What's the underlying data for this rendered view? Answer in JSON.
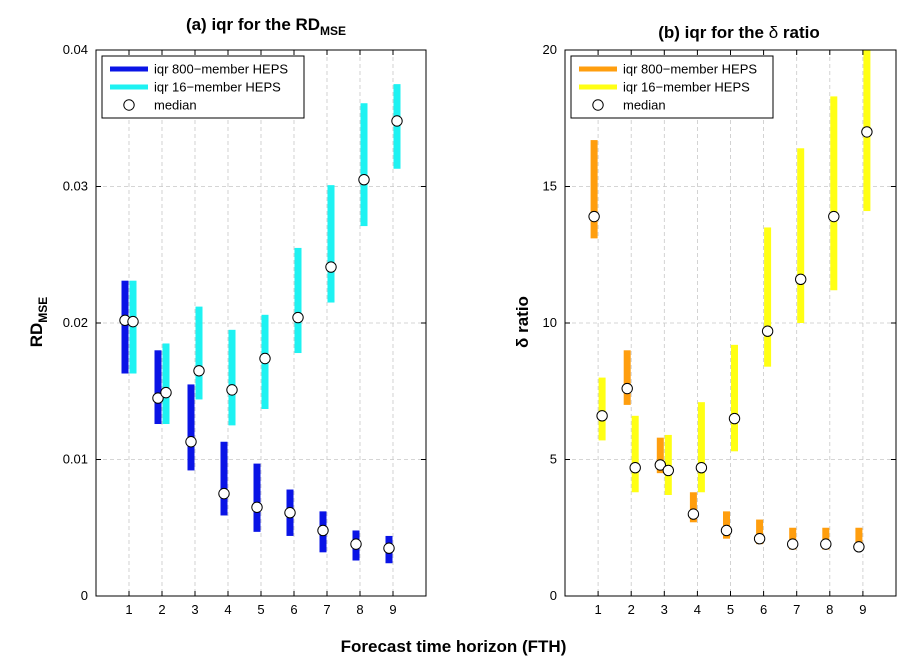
{
  "figure": {
    "xlabel": "Forecast time horizon (FTH)"
  },
  "chart_data": [
    {
      "type": "range-bar",
      "title_prefix": "(a) iqr for the RD",
      "title_sub": "MSE",
      "ylabel_main": "RD",
      "ylabel_sub": "MSE",
      "x": [
        1,
        2,
        3,
        4,
        5,
        6,
        7,
        8,
        9
      ],
      "xticks": [
        "1",
        "2",
        "3",
        "4",
        "5",
        "6",
        "7",
        "8",
        "9"
      ],
      "xlim": [
        0,
        10
      ],
      "ylim": [
        0,
        0.04
      ],
      "yticks": [
        "0",
        "0.01",
        "0.02",
        "0.03",
        "0.04"
      ],
      "ytick_values": [
        0,
        0.01,
        0.02,
        0.03,
        0.04
      ],
      "grid": true,
      "legend_position": "top-left",
      "series": [
        {
          "name": "iqr 800−member HEPS",
          "color": "#0a14e6",
          "low": [
            0.0163,
            0.0126,
            0.0092,
            0.0059,
            0.0047,
            0.0044,
            0.0032,
            0.0026,
            0.0024
          ],
          "high": [
            0.0231,
            0.018,
            0.0155,
            0.0113,
            0.0097,
            0.0078,
            0.0062,
            0.0048,
            0.0044
          ],
          "median": [
            0.0202,
            0.0145,
            0.0113,
            0.0075,
            0.0065,
            0.0061,
            0.0048,
            0.0038,
            0.0035
          ]
        },
        {
          "name": "iqr 16−member HEPS",
          "color": "#1ef2f2",
          "low": [
            0.0163,
            0.0126,
            0.0144,
            0.0125,
            0.0137,
            0.0178,
            0.0215,
            0.0271,
            0.0313
          ],
          "high": [
            0.0231,
            0.0185,
            0.0212,
            0.0195,
            0.0206,
            0.0255,
            0.0301,
            0.0361,
            0.0375
          ],
          "median": [
            0.0201,
            0.0149,
            0.0165,
            0.0151,
            0.0174,
            0.0204,
            0.0241,
            0.0305,
            0.0348
          ]
        }
      ],
      "median_label": "median"
    },
    {
      "type": "range-bar",
      "title_prefix": "(b) iqr for the ",
      "title_symbol": "δ",
      "title_suffix": " ratio",
      "ylabel": "δ ratio",
      "x": [
        1,
        2,
        3,
        4,
        5,
        6,
        7,
        8,
        9
      ],
      "xticks": [
        "1",
        "2",
        "3",
        "4",
        "5",
        "6",
        "7",
        "8",
        "9"
      ],
      "xlim": [
        0,
        10
      ],
      "ylim": [
        0,
        20
      ],
      "yticks": [
        "0",
        "5",
        "10",
        "15",
        "20"
      ],
      "ytick_values": [
        0,
        5,
        10,
        15,
        20
      ],
      "grid": true,
      "legend_position": "top-left",
      "series": [
        {
          "name": "iqr 800−member HEPS",
          "color": "#ff9e0e",
          "low": [
            13.1,
            7.0,
            4.5,
            2.7,
            2.1,
            1.9,
            1.7,
            1.7,
            1.7
          ],
          "high": [
            16.7,
            9.0,
            5.8,
            3.8,
            3.1,
            2.8,
            2.5,
            2.5,
            2.5
          ],
          "median": [
            13.9,
            7.6,
            4.8,
            3.0,
            2.4,
            2.1,
            1.9,
            1.9,
            1.8
          ]
        },
        {
          "name": "iqr 16−member HEPS",
          "color": "#ffff14",
          "low": [
            5.7,
            3.8,
            3.7,
            3.8,
            5.3,
            8.4,
            10.0,
            11.2,
            14.1
          ],
          "high": [
            8.0,
            6.6,
            5.9,
            7.1,
            9.2,
            13.5,
            16.4,
            18.3,
            20.0
          ],
          "median": [
            6.6,
            4.7,
            4.6,
            4.7,
            6.5,
            9.7,
            11.6,
            13.9,
            17.0
          ]
        }
      ],
      "median_label": "median"
    }
  ]
}
